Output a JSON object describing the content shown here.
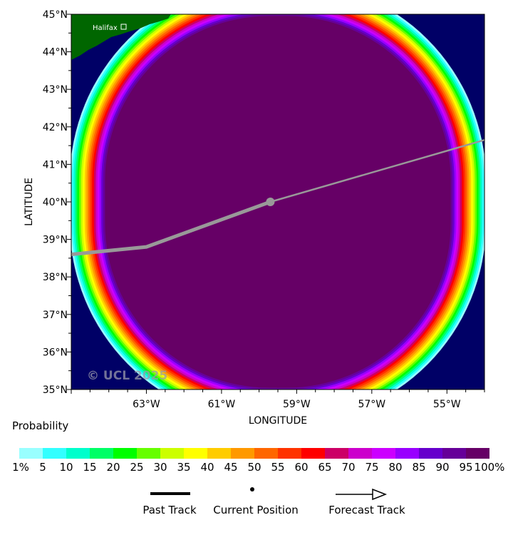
{
  "map": {
    "lat_labels": [
      "45°N",
      "44°N",
      "43°N",
      "42°N",
      "41°N",
      "40°N",
      "39°N",
      "38°N",
      "37°N",
      "36°N",
      "35°N"
    ],
    "lon_labels": [
      "63°W",
      "61°W",
      "59°W",
      "57°W",
      "55°W"
    ],
    "x_axis_label": "LONGITUDE",
    "y_axis_label": "LATITUDE",
    "city_label": "Halifax",
    "watermark": "© UCL 2025",
    "ocean_color": "#000066",
    "land_color": "#006600",
    "track_color": "#999999",
    "lon_range": [
      -65,
      -54
    ],
    "lat_range": [
      35,
      45
    ],
    "current_position": {
      "lon": -59.7,
      "lat": 40.0
    },
    "past_track": [
      {
        "lon": -65.0,
        "lat": 38.6
      },
      {
        "lon": -63.0,
        "lat": 38.8
      },
      {
        "lon": -59.7,
        "lat": 40.0
      }
    ],
    "forecast_track": [
      {
        "lon": -59.7,
        "lat": 40.0
      },
      {
        "lon": -54.0,
        "lat": 41.65
      }
    ]
  },
  "legend": {
    "title": "Probability",
    "scale_labels": [
      "1%",
      "5",
      "10",
      "15",
      "20",
      "25",
      "30",
      "35",
      "40",
      "45",
      "50",
      "55",
      "60",
      "65",
      "70",
      "75",
      "80",
      "85",
      "90",
      "95",
      "100%"
    ],
    "colors": [
      "#99ffff",
      "#33ffff",
      "#00ffcc",
      "#00ff66",
      "#00ff00",
      "#66ff00",
      "#ccff00",
      "#ffff00",
      "#ffcc00",
      "#ff9900",
      "#ff6600",
      "#ff3300",
      "#ff0000",
      "#cc0066",
      "#cc00cc",
      "#cc00ff",
      "#9900ff",
      "#6600cc",
      "#660099",
      "#660066"
    ],
    "past_track_label": "Past Track",
    "current_position_label": "Current Position",
    "forecast_track_label": "Forecast Track"
  }
}
